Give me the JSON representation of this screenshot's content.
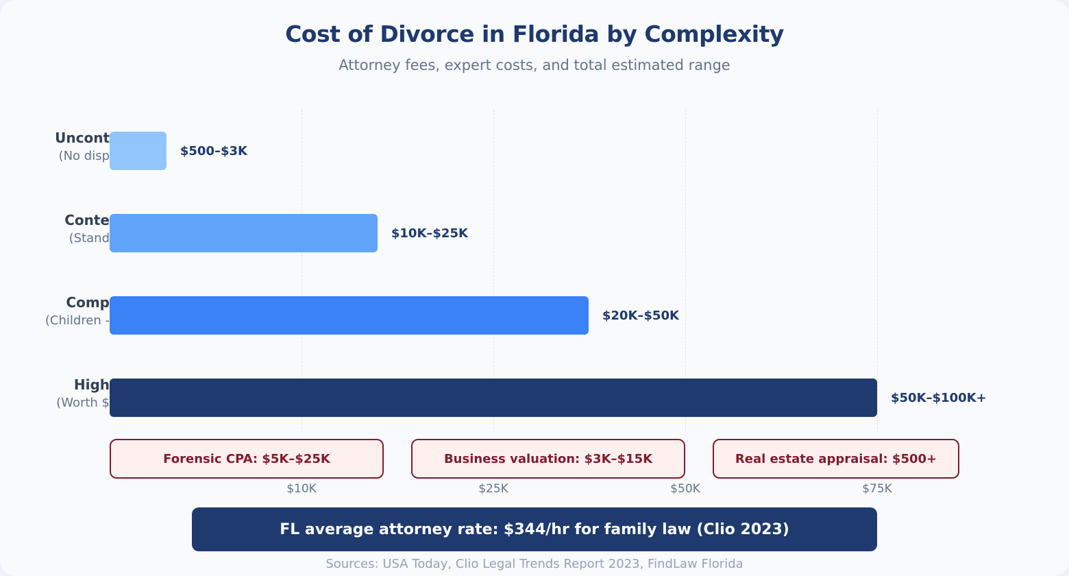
{
  "chart_data": {
    "type": "bar",
    "orientation": "horizontal",
    "title": "Cost of Divorce in Florida by Complexity",
    "subtitle": "Attorney fees, expert costs, and total estimated range",
    "categories": [
      {
        "name": "Uncont",
        "sub": "(No disp",
        "label": "$500–$3K",
        "extent_pct": 7.4,
        "color": "#93c5fd"
      },
      {
        "name": "Conte",
        "sub": "(Stand",
        "label": "$10K–$25K",
        "extent_pct": 34.9,
        "color": "#60a5fa"
      },
      {
        "name": "Comp",
        "sub": "(Children -",
        "label": "$20K–$50K",
        "extent_pct": 62.4,
        "color": "#3b82f6"
      },
      {
        "name": "High",
        "sub": "(Worth $",
        "label": "$50K–$100K+",
        "extent_pct": 100,
        "color": "#1e3a6e"
      }
    ],
    "x_ticks": [
      "$10K",
      "$25K",
      "$50K",
      "$75K"
    ],
    "grid": true,
    "callouts": [
      "Forensic CPA: $5K–$25K",
      "Business valuation: $3K–$15K",
      "Real estate appraisal: $500+"
    ],
    "banner": "FL average attorney rate: $344/hr for family law (Clio 2023)",
    "source": "Sources: USA Today, Clio Legal Trends Report 2023, FindLaw Florida"
  }
}
